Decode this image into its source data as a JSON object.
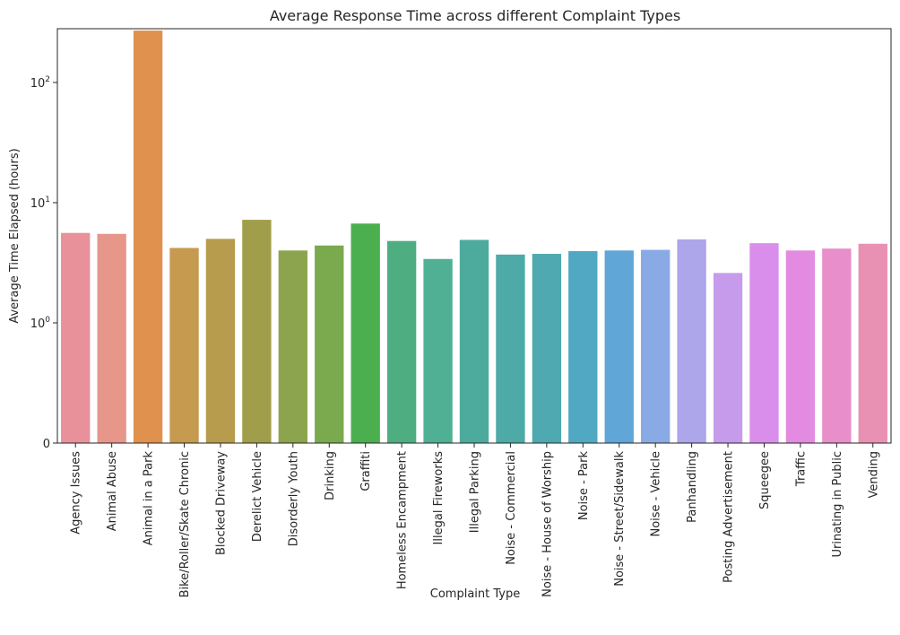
{
  "chart_data": {
    "type": "bar",
    "title": "Average Response Time across different Complaint Types",
    "xlabel": "Complaint Type",
    "ylabel": "Average Time Elapsed (hours)",
    "yscale": "symlog",
    "ylim": [
      0,
      280
    ],
    "yticks": [
      {
        "value": 0,
        "base": "0",
        "exp": ""
      },
      {
        "value": 1,
        "base": "10",
        "exp": "0"
      },
      {
        "value": 10,
        "base": "10",
        "exp": "1"
      },
      {
        "value": 100,
        "base": "10",
        "exp": "2"
      }
    ],
    "grid": false,
    "categories": [
      "Agency Issues",
      "Animal Abuse",
      "Animal in a Park",
      "Bike/Roller/Skate Chronic",
      "Blocked Driveway",
      "Derelict Vehicle",
      "Disorderly Youth",
      "Drinking",
      "Graffiti",
      "Homeless Encampment",
      "Illegal Fireworks",
      "Illegal Parking",
      "Noise - Commercial",
      "Noise - House of Worship",
      "Noise - Park",
      "Noise - Street/Sidewalk",
      "Noise - Vehicle",
      "Panhandling",
      "Posting Advertisement",
      "Squeegee",
      "Traffic",
      "Urinating in Public",
      "Vending"
    ],
    "values": [
      5.6,
      5.5,
      270,
      4.2,
      5.0,
      7.2,
      4.0,
      4.4,
      6.7,
      4.8,
      3.4,
      4.9,
      3.7,
      3.75,
      3.95,
      4.0,
      4.05,
      4.95,
      2.6,
      4.6,
      4.0,
      4.15,
      4.55
    ],
    "colors": [
      "#e8919a",
      "#e6978a",
      "#e0914d",
      "#c69a4f",
      "#b79c4d",
      "#a19e4b",
      "#8da44e",
      "#7aa94e",
      "#4baf4f",
      "#4fad82",
      "#4fb094",
      "#4dab9d",
      "#4eaaa6",
      "#4ea9b0",
      "#51a8c2",
      "#60a6d6",
      "#8aaae6",
      "#ada6ea",
      "#c69bec",
      "#da8eec",
      "#e28be0",
      "#e88ecb",
      "#e891b3"
    ]
  }
}
